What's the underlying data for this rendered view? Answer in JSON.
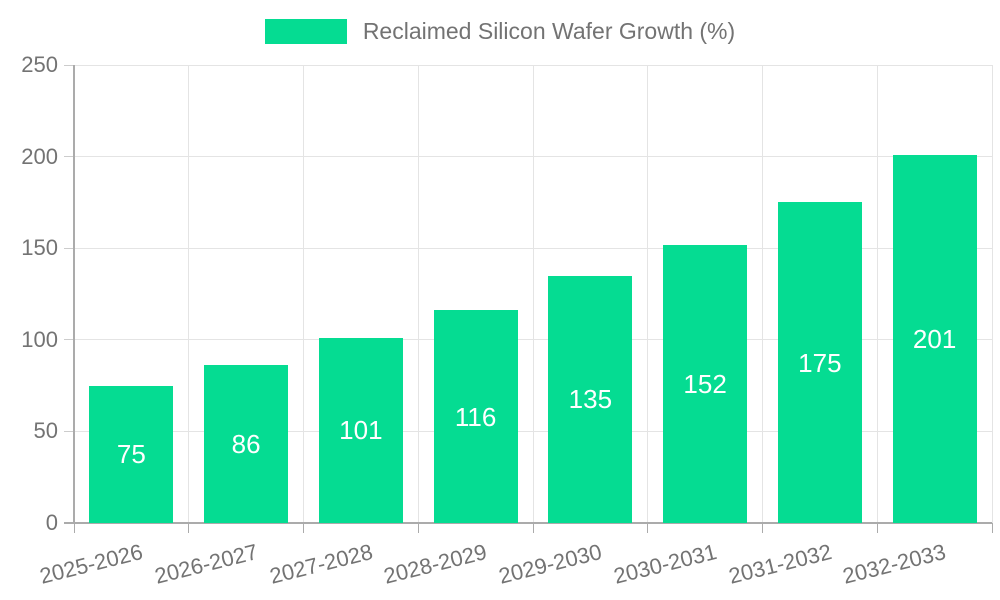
{
  "legend": {
    "label": "Reclaimed Silicon Wafer Growth (%)"
  },
  "chart_data": {
    "type": "bar",
    "series_name": "Reclaimed Silicon Wafer Growth (%)",
    "categories": [
      "2025-2026",
      "2026-2027",
      "2027-2028",
      "2028-2029",
      "2029-2030",
      "2030-2031",
      "2031-2032",
      "2032-2033"
    ],
    "values": [
      75,
      86,
      101,
      116,
      135,
      152,
      175,
      201
    ],
    "bar_labels": [
      "75",
      "86",
      "101",
      "116",
      "135",
      "152",
      "175",
      "201"
    ],
    "ylim": [
      0,
      250
    ],
    "yticks": [
      0,
      50,
      100,
      150,
      200,
      250
    ],
    "grid": true,
    "legend_position": "top",
    "xlabel": "",
    "ylabel": "",
    "colors": {
      "bar": "#05dc92",
      "bar_label_text": "#ffffff",
      "axis_text": "#737373",
      "gridline": "#e4e4e4",
      "axis_line": "#ababab"
    }
  }
}
